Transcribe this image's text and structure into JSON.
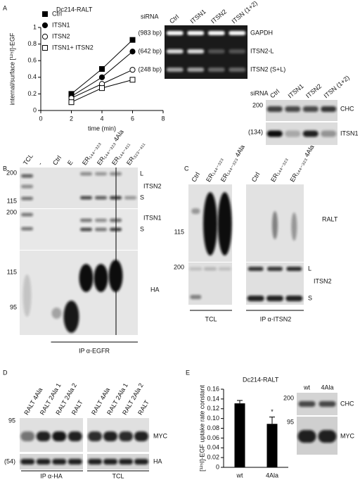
{
  "chart_data": [
    {
      "type": "line",
      "title": "Dc214-RALT",
      "xlabel": "time (min)",
      "ylabel": "internal/surface [¹²⁵I]-EGF",
      "x": [
        2,
        4,
        6
      ],
      "series": [
        {
          "name": "Ctrl",
          "color": "#000000",
          "marker": "square",
          "filled": true,
          "values": [
            0.2,
            0.5,
            0.85
          ]
        },
        {
          "name": "ITSN1",
          "color": "#000000",
          "marker": "circle",
          "filled": true,
          "values": [
            0.17,
            0.4,
            0.71
          ]
        },
        {
          "name": "ITSN2",
          "color": "#000000",
          "marker": "circle",
          "filled": false,
          "values": [
            0.15,
            0.32,
            0.49
          ]
        },
        {
          "name": "ITSN1+ ITSN2",
          "color": "#000000",
          "marker": "square",
          "filled": false,
          "values": [
            0.1,
            0.27,
            0.37
          ]
        }
      ],
      "xlim": [
        0,
        8
      ],
      "xticks": [
        0,
        2,
        4,
        6,
        8
      ],
      "ylim": [
        0,
        1
      ],
      "yticks": [
        0,
        0.2,
        0.4,
        0.6,
        0.8,
        1
      ],
      "legend": "upper left"
    },
    {
      "type": "bar",
      "title": "Dc214-RALT",
      "ylabel": "[¹²⁵I]-EGF uptake rate constant",
      "categories": [
        "wt",
        "4Ala"
      ],
      "values": [
        0.131,
        0.089
      ],
      "errors": [
        0.006,
        0.014
      ],
      "color": "#000000",
      "value_annotations": [
        null,
        "*"
      ],
      "ylim": [
        0,
        0.16
      ],
      "yticks": [
        0,
        0.02,
        0.04,
        0.06,
        0.08,
        {
          "value": 0.1,
          "label": "0.10"
        },
        0.12,
        0.14,
        0.16
      ]
    }
  ],
  "panels": {
    "A": {
      "label": "A",
      "gel": {
        "header": "siRNA",
        "lanes": [
          "Ctrl",
          "ITSN1",
          "ITSN2",
          "ITSN (1+2)"
        ],
        "rows": [
          {
            "size": "(983 bp)",
            "name": "GAPDH"
          },
          {
            "size": "(642 bp)",
            "name": "ITSN2-L"
          },
          {
            "size": "(248 bp)",
            "name": "ITSN2 (S+L)"
          }
        ]
      },
      "blot": {
        "header": "siRNA",
        "lanes": [
          "Ctrl",
          "ITSN1",
          "ITSN2",
          "ITSN (1+2)"
        ],
        "rows": [
          {
            "size": "200",
            "name": "CHC"
          },
          {
            "size": "(134)",
            "name": "ITSN1"
          }
        ]
      }
    },
    "B": {
      "label": "B",
      "lanes": [
        "TCL",
        "-",
        "Ctrl",
        "E",
        "ER₁₄₄₋₃₂₃",
        "ER₁₄₄₋₃₂₃ 4Ala",
        "ER₁₄₄₋₄₁₁",
        "ER₃₂₃₋₄₁₁"
      ],
      "rows": [
        {
          "name": "ITSN2",
          "markers": [
            "200",
            "115"
          ],
          "bands": [
            "L",
            "S"
          ]
        },
        {
          "name": "ITSN1",
          "markers": [
            "200"
          ],
          "bands": [
            "S"
          ]
        },
        {
          "name": "HA",
          "markers": [
            "115",
            "95"
          ]
        }
      ],
      "footer": "IP α-EGFR"
    },
    "C": {
      "label": "C",
      "lanes": [
        "Ctrl",
        "ER₁₄₄₋₃₂₃",
        "ER₁₄₄₋₃₂₃ 4Ala",
        "Ctrl",
        "ER₁₄₄₋₃₂₃",
        "ER₁₄₄₋₃₂₃ 4Ala"
      ],
      "rows": [
        {
          "name": "RALT",
          "markers": [
            "115"
          ]
        },
        {
          "name": "ITSN2",
          "markers": [
            "200"
          ],
          "bands": [
            "L",
            "S"
          ]
        }
      ],
      "footer": [
        "TCL",
        "IP α-ITSN2"
      ]
    },
    "D": {
      "label": "D",
      "lanes": [
        "RALT 4Ala",
        "RALT 2Ala 1",
        "RALT 2Ala 2",
        "RALT",
        "RALT 4Ala",
        "RALT 2Ala 1",
        "RALT 2Ala 2",
        "RALT"
      ],
      "rows": [
        {
          "name": "MYC",
          "markers": [
            "95"
          ]
        },
        {
          "name": "HA",
          "markers": [
            "(54)"
          ]
        }
      ],
      "footer": [
        "IP α-HA",
        "TCL"
      ]
    },
    "E": {
      "label": "E",
      "blot": {
        "lanes": [
          "wt",
          "4Ala"
        ],
        "rows": [
          {
            "name": "CHC",
            "markers": [
              "200"
            ]
          },
          {
            "name": "MYC",
            "markers": [
              "95"
            ]
          }
        ]
      }
    }
  }
}
